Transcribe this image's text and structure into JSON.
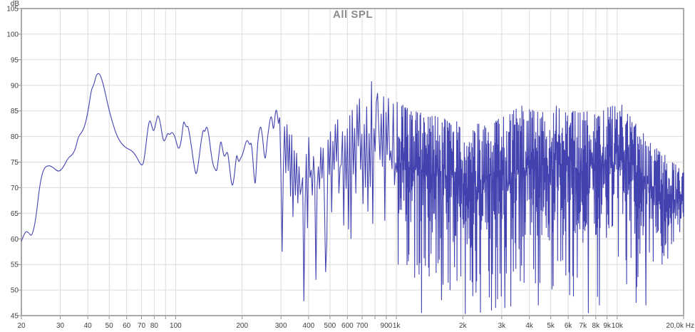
{
  "window": {
    "background": "#ffffff"
  },
  "chart_data": {
    "type": "line",
    "title": "All SPL",
    "title_color": "#8a8a8a",
    "ylabel": "dB",
    "xlabel_unit": "Hz",
    "x_scale": "log",
    "x_range": [
      20,
      20000
    ],
    "y_range": [
      45,
      105
    ],
    "y_tick_step": 5,
    "y_ticks": [
      45,
      50,
      55,
      60,
      65,
      70,
      75,
      80,
      85,
      90,
      95,
      100,
      105
    ],
    "x_gridlines": [
      20,
      30,
      40,
      50,
      60,
      70,
      80,
      90,
      100,
      200,
      300,
      400,
      500,
      600,
      700,
      800,
      900,
      1000,
      2000,
      3000,
      4000,
      5000,
      6000,
      7000,
      8000,
      9000,
      10000,
      20000
    ],
    "x_tick_labels": [
      {
        "f": 20,
        "label": "20"
      },
      {
        "f": 30,
        "label": "30"
      },
      {
        "f": 40,
        "label": "40"
      },
      {
        "f": 50,
        "label": "50"
      },
      {
        "f": 60,
        "label": "60"
      },
      {
        "f": 70,
        "label": "70"
      },
      {
        "f": 80,
        "label": "80"
      },
      {
        "f": 100,
        "label": "100"
      },
      {
        "f": 200,
        "label": "200"
      },
      {
        "f": 300,
        "label": "300"
      },
      {
        "f": 400,
        "label": "400"
      },
      {
        "f": 500,
        "label": "500"
      },
      {
        "f": 600,
        "label": "600"
      },
      {
        "f": 700,
        "label": "700"
      },
      {
        "f": 900,
        "label": "900"
      },
      {
        "f": 1000,
        "label": "1k"
      },
      {
        "f": 2000,
        "label": "2k"
      },
      {
        "f": 3000,
        "label": "3k"
      },
      {
        "f": 4000,
        "label": "4k"
      },
      {
        "f": 5000,
        "label": "5k"
      },
      {
        "f": 6000,
        "label": "6k"
      },
      {
        "f": 7000,
        "label": "7k"
      },
      {
        "f": 8000,
        "label": "8k"
      },
      {
        "f": 9000,
        "label": "9k"
      },
      {
        "f": 10000,
        "label": "10k"
      },
      {
        "f": 20000,
        "label": "20,0k Hz"
      }
    ],
    "grid": true,
    "grid_color": "#dcdcdc",
    "border_color": "#aaaaaa",
    "tick_color": "#909090",
    "label_color": "#3f3f3f",
    "legend": "none",
    "series": [
      {
        "name": "All SPL",
        "color": "#4343b0",
        "stroke_width": 1.1,
        "smooth_points": [
          [
            20,
            59.5
          ],
          [
            20.8,
            61.6
          ],
          [
            21.6,
            61.2
          ],
          [
            22.3,
            60.4
          ],
          [
            23.2,
            63.5
          ],
          [
            24.2,
            70.5
          ],
          [
            25.2,
            73.8
          ],
          [
            26.5,
            74.4
          ],
          [
            27.8,
            74.0
          ],
          [
            29.5,
            73.0
          ],
          [
            31,
            74.0
          ],
          [
            32.5,
            75.8
          ],
          [
            34,
            76.4
          ],
          [
            35.2,
            77.6
          ],
          [
            36.2,
            80.0
          ],
          [
            37.6,
            80.8
          ],
          [
            39,
            82.4
          ],
          [
            40.5,
            86.0
          ],
          [
            41.5,
            89.2
          ],
          [
            42.6,
            90.1
          ],
          [
            43.6,
            91.9
          ],
          [
            44.6,
            92.4
          ],
          [
            45.6,
            92.0
          ],
          [
            47,
            90.2
          ],
          [
            48.5,
            87.6
          ],
          [
            50,
            85.0
          ],
          [
            52,
            82.4
          ],
          [
            54,
            80.3
          ],
          [
            56,
            79.0
          ],
          [
            58,
            78.2
          ],
          [
            60.5,
            77.6
          ],
          [
            63,
            77.3
          ],
          [
            65.5,
            76.5
          ],
          [
            68,
            75.2
          ],
          [
            70,
            74.3
          ],
          [
            71.5,
            74.7
          ],
          [
            73,
            77.5
          ],
          [
            75,
            82.0
          ],
          [
            76.5,
            83.4
          ],
          [
            78,
            82.0
          ],
          [
            79.5,
            80.8
          ],
          [
            81.5,
            82.8
          ],
          [
            83,
            84.4
          ],
          [
            85,
            83.0
          ],
          [
            87,
            80.1
          ],
          [
            88.5,
            78.9
          ],
          [
            90.5,
            79.8
          ],
          [
            92,
            80.7
          ],
          [
            94,
            80.3
          ],
          [
            96,
            80.9
          ],
          [
            98,
            80.5
          ],
          [
            100,
            79.5
          ],
          [
            103,
            77.2
          ],
          [
            106,
            79.0
          ],
          [
            108.5,
            83.1
          ],
          [
            110,
            82.5
          ],
          [
            112,
            81.8
          ],
          [
            113.5,
            82.1
          ],
          [
            115,
            81.0
          ],
          [
            117.5,
            78.5
          ],
          [
            119.5,
            76.1
          ],
          [
            122,
            73.5
          ],
          [
            124,
            72.4
          ],
          [
            126.5,
            74.5
          ],
          [
            129,
            77.5
          ],
          [
            131.5,
            80.1
          ],
          [
            133.5,
            81.4
          ],
          [
            135.5,
            80.8
          ],
          [
            138,
            82.1
          ],
          [
            140.5,
            81.0
          ],
          [
            143,
            78.5
          ],
          [
            145.5,
            76.0
          ],
          [
            148,
            74.3
          ],
          [
            151,
            73.6
          ],
          [
            153.5,
            73.1
          ],
          [
            156,
            75.5
          ],
          [
            158.5,
            78.0
          ],
          [
            160.5,
            79.3
          ],
          [
            163,
            77.5
          ],
          [
            166,
            75.9
          ],
          [
            169,
            76.6
          ],
          [
            172,
            77.1
          ],
          [
            175,
            74.5
          ],
          [
            178,
            71.5
          ],
          [
            181,
            70.1
          ],
          [
            184,
            72.0
          ],
          [
            186.5,
            74.5
          ],
          [
            189,
            76.6
          ],
          [
            191.5,
            75.5
          ],
          [
            193.5,
            75.0
          ],
          [
            196,
            75.6
          ],
          [
            200,
            76.2
          ],
          [
            204,
            77.5
          ],
          [
            208,
            78.9
          ],
          [
            211,
            79.3
          ],
          [
            214,
            78.8
          ],
          [
            217,
            78.3
          ],
          [
            219.5,
            78.9
          ],
          [
            222,
            77.5
          ],
          [
            225,
            74.0
          ],
          [
            227.5,
            71.5
          ],
          [
            229.5,
            70.5
          ],
          [
            232,
            74.0
          ],
          [
            235,
            78.5
          ],
          [
            237.5,
            80.3
          ],
          [
            240,
            81.5
          ],
          [
            243,
            82.0
          ],
          [
            245.5,
            81.0
          ],
          [
            248,
            79.5
          ],
          [
            251,
            77.0
          ],
          [
            254,
            75.5
          ],
          [
            256.5,
            76.5
          ],
          [
            259,
            78.5
          ],
          [
            262,
            80.5
          ],
          [
            265,
            82.0
          ],
          [
            268,
            83.5
          ],
          [
            271,
            84.0
          ],
          [
            274,
            83.0
          ],
          [
            277,
            81.2
          ],
          [
            280,
            82.5
          ],
          [
            283,
            84.8
          ],
          [
            286,
            85.3
          ],
          [
            289,
            84.2
          ],
          [
            292,
            82.5
          ]
        ],
        "noise_bins": [
          [
            292,
            85,
            78,
            62
          ],
          [
            330,
            82,
            75,
            58
          ],
          [
            370,
            80,
            72,
            54
          ],
          [
            420,
            80,
            72,
            55
          ],
          [
            470,
            81,
            73,
            56
          ],
          [
            530,
            83,
            75,
            58
          ],
          [
            600,
            86,
            77,
            60
          ],
          [
            680,
            88,
            79,
            62
          ],
          [
            760,
            90,
            80,
            63
          ],
          [
            850,
            88,
            79,
            61
          ],
          [
            1000,
            87,
            77,
            56
          ],
          [
            1200,
            85,
            75,
            52
          ],
          [
            1500,
            84,
            74,
            50
          ],
          [
            2000,
            83,
            73,
            47
          ],
          [
            2500,
            83,
            72,
            46
          ],
          [
            3000,
            84,
            73,
            46
          ],
          [
            3600,
            86,
            74,
            47
          ],
          [
            4300,
            85,
            75,
            48
          ],
          [
            5000,
            86,
            76,
            49
          ],
          [
            6000,
            85,
            76,
            49
          ],
          [
            7000,
            85,
            76,
            47
          ],
          [
            8000,
            85,
            76,
            48
          ],
          [
            9000,
            86,
            76,
            49
          ],
          [
            10000,
            86,
            77,
            50
          ],
          [
            11000,
            85,
            76,
            51
          ],
          [
            12500,
            82,
            74,
            50
          ],
          [
            14000,
            79,
            72,
            52
          ],
          [
            16000,
            77,
            70,
            55
          ],
          [
            18000,
            75,
            69,
            57
          ],
          [
            20000,
            73,
            68,
            60
          ]
        ],
        "features": [
          [
            303,
            57.5
          ],
          [
            380,
            47.8
          ],
          [
            430,
            52
          ],
          [
            480,
            53.5
          ],
          [
            620,
            60
          ],
          [
            770,
            90.8
          ],
          [
            820,
            88.5
          ],
          [
            1020,
            55
          ],
          [
            1300,
            45.5
          ],
          [
            1600,
            48
          ],
          [
            2050,
            45.3
          ],
          [
            2400,
            45.6
          ],
          [
            2700,
            46
          ],
          [
            3100,
            46.5
          ],
          [
            3700,
            86
          ],
          [
            4400,
            47
          ],
          [
            5300,
            86
          ],
          [
            6100,
            49
          ],
          [
            7400,
            45.5
          ],
          [
            8300,
            47
          ],
          [
            9500,
            86
          ],
          [
            10500,
            86.2
          ],
          [
            12200,
            47.5
          ],
          [
            13500,
            47
          ],
          [
            16000,
            55
          ],
          [
            19500,
            64
          ]
        ],
        "render": {
          "seed": 123456789,
          "ppo_low": 55,
          "ppo_high": 210,
          "split_hz": 1000,
          "noise_start_hz": 296,
          "deep_dip_prob_low": 0.1,
          "deep_dip_prob_high": 0.17
        }
      }
    ]
  }
}
